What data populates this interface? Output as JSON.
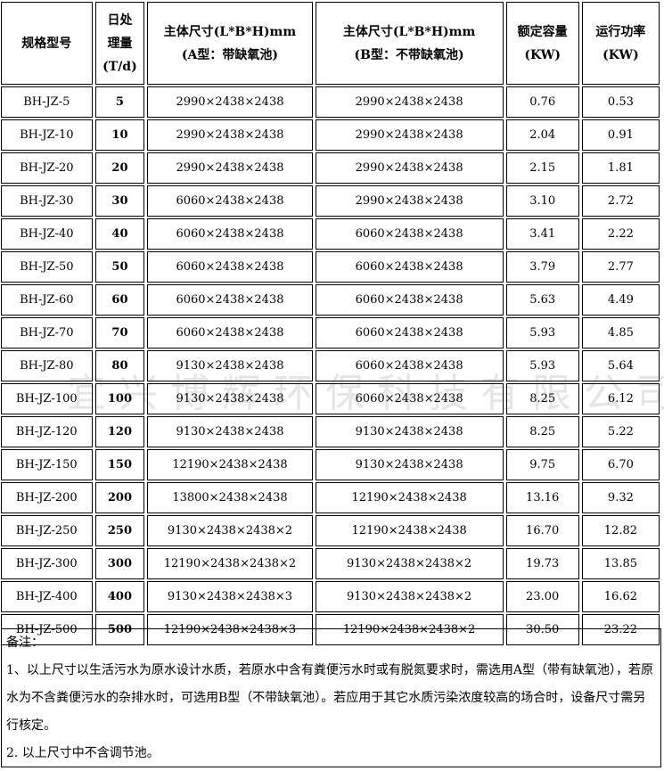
{
  "header": {
    "model": "规格型号",
    "capacity": [
      "日处",
      "理量",
      "(T/d)"
    ],
    "dims_a": [
      "主体尺寸(L*B*H)mm",
      "(A型：带缺氧池)"
    ],
    "dims_b": [
      "主体尺寸(L*B*H)mm",
      "(B型：不带缺氧池)"
    ],
    "rated": [
      "额定容量",
      "(KW)"
    ],
    "running": [
      "运行功率",
      "(KW)"
    ]
  },
  "rows": [
    [
      "BH-JZ-5",
      "5",
      "2990×2438×2438",
      "2990×2438×2438",
      "0.76",
      "0.53"
    ],
    [
      "BH-JZ-10",
      "10",
      "2990×2438×2438",
      "2990×2438×2438",
      "2.04",
      "0.91"
    ],
    [
      "BH-JZ-20",
      "20",
      "2990×2438×2438",
      "2990×2438×2438",
      "2.15",
      "1.81"
    ],
    [
      "BH-JZ-30",
      "30",
      "6060×2438×2438",
      "2990×2438×2438",
      "3.10",
      "2.72"
    ],
    [
      "BH-JZ-40",
      "40",
      "6060×2438×2438",
      "6060×2438×2438",
      "3.41",
      "2.22"
    ],
    [
      "BH-JZ-50",
      "50",
      "6060×2438×2438",
      "6060×2438×2438",
      "3.79",
      "2.77"
    ],
    [
      "BH-JZ-60",
      "60",
      "6060×2438×2438",
      "6060×2438×2438",
      "5.63",
      "4.49"
    ],
    [
      "BH-JZ-70",
      "70",
      "6060×2438×2438",
      "6060×2438×2438",
      "5.93",
      "4.85"
    ],
    [
      "BH-JZ-80",
      "80",
      "9130×2438×2438",
      "6060×2438×2438",
      "5.93",
      "5.64"
    ],
    [
      "BH-JZ-100",
      "100",
      "9130×2438×2438",
      "6060×2438×2438",
      "8.25",
      "6.12"
    ],
    [
      "BH-JZ-120",
      "120",
      "9130×2438×2438",
      "9130×2438×2438",
      "8.25",
      "5.22"
    ],
    [
      "BH-JZ-150",
      "150",
      "12190×2438×2438",
      "9130×2438×2438",
      "9.75",
      "6.70"
    ],
    [
      "BH-JZ-200",
      "200",
      "13800×2438×2438",
      "12190×2438×2438",
      "13.16",
      "9.32"
    ],
    [
      "BH-JZ-250",
      "250",
      "9130×2438×2438×2",
      "12190×2438×2438",
      "16.70",
      "12.82"
    ],
    [
      "BH-JZ-300",
      "300",
      "12190×2438×2438×2",
      "9130×2438×2438×2",
      "19.73",
      "13.85"
    ],
    [
      "BH-JZ-400",
      "400",
      "9130×2438×2438×3",
      "9130×2438×2438×2",
      "23.00",
      "16.62"
    ],
    [
      "BH-JZ-500",
      "500",
      "12190×2438×2438×3",
      "12190×2438×2438×2",
      "30.50",
      "23.22"
    ]
  ],
  "notes": {
    "title": "备注：",
    "item1": "1、以上尺寸以生活污水为原水设计水质，若原水中含有粪便污水时或有脱氮要求时，需选用A型（带有缺氧池），若原水为不含粪便污水的杂排水时，可选用B型（不带缺氧池）。若应用于其它水质污染浓度较高的场合时，设备尺寸需另行核定。",
    "item2": "2. 以上尺寸中不含调节池。"
  },
  "watermark": "宜兴博辉环保科技有限公司"
}
